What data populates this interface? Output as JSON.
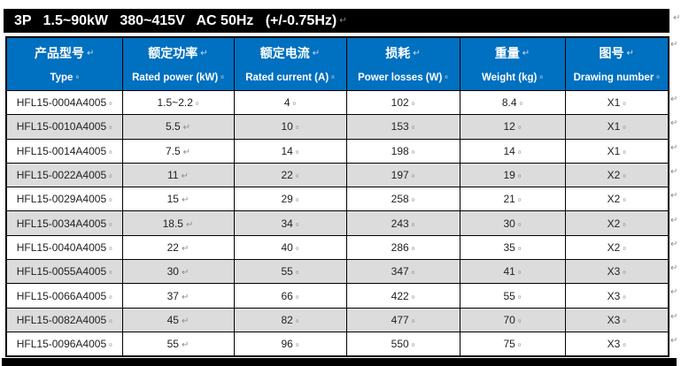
{
  "title_bar": {
    "text": "3P   1.5~90kW   380~415V   AC 50Hz   (+/-0.75Hz)"
  },
  "table": {
    "columns": [
      {
        "zh": "产品型号",
        "en": "Type"
      },
      {
        "zh": "额定功率",
        "en": "Rated power (kW)"
      },
      {
        "zh": "额定电流",
        "en": "Rated current (A)"
      },
      {
        "zh": "损耗",
        "en": "Power losses (W)"
      },
      {
        "zh": "重量",
        "en": "Weight (kg)"
      },
      {
        "zh": "图号",
        "en": "Drawing number"
      }
    ],
    "column_keys": [
      "type",
      "rated-power",
      "rated-current",
      "power-losses",
      "weight",
      "drawing-number"
    ],
    "rows": [
      [
        "HFL15-0004A4005",
        "1.5~2.2",
        "4",
        "102",
        "8.4",
        "X1"
      ],
      [
        "HFL15-0010A4005",
        "5.5",
        "10",
        "153",
        "12",
        "X1"
      ],
      [
        "HFL15-0014A4005",
        "7.5",
        "14",
        "198",
        "14",
        "X1"
      ],
      [
        "HFL15-0022A4005",
        "11",
        "22",
        "197",
        "19",
        "X2"
      ],
      [
        "HFL15-0029A4005",
        "15",
        "29",
        "258",
        "21",
        "X2"
      ],
      [
        "HFL15-0034A4005",
        "18.5",
        "34",
        "243",
        "30",
        "X2"
      ],
      [
        "HFL15-0040A4005",
        "22",
        "40",
        "286",
        "35",
        "X2"
      ],
      [
        "HFL15-0055A4005",
        "30",
        "55",
        "347",
        "41",
        "X3"
      ],
      [
        "HFL15-0066A4005",
        "37",
        "66",
        "422",
        "55",
        "X3"
      ],
      [
        "HFL15-0082A4005",
        "45",
        "82",
        "477",
        "70",
        "X3"
      ],
      [
        "HFL15-0096A4005",
        "55",
        "96",
        "550",
        "75",
        "X3"
      ]
    ]
  },
  "marks": {
    "line_break": "↵",
    "cell_end": "¤"
  },
  "colors": {
    "title_bar_bg": "#000000",
    "title_text": "#ffffff",
    "header_bg": "#0070C0",
    "header_text": "#ffffff",
    "row_bg": "#ffffff",
    "row_alt_bg": "#DCDCDC",
    "grid_border": "#000000",
    "body_text": "#1f1f1f",
    "mark_gray": "#8c8c8c"
  }
}
